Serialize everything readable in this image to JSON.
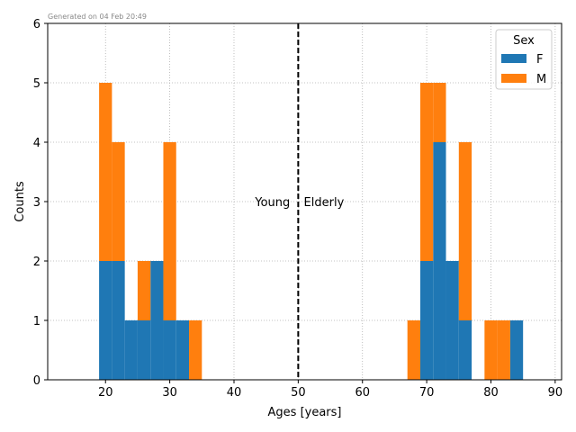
{
  "chart_data": {
    "type": "bar",
    "subtype": "stacked histogram",
    "generated_note": "Generated on 04 Feb 20:49",
    "xlabel": "Ages [years]",
    "ylabel": "Counts",
    "xlim": [
      11,
      91
    ],
    "ylim": [
      0,
      6
    ],
    "x_ticks": [
      20,
      30,
      40,
      50,
      60,
      70,
      80,
      90
    ],
    "y_ticks": [
      0,
      1,
      2,
      3,
      4,
      5,
      6
    ],
    "grid": true,
    "bin_width": 2,
    "legend": {
      "title": "Sex",
      "placement": "top-right"
    },
    "series": [
      {
        "name": "F",
        "color": "#1f77b4",
        "bins": [
          {
            "x0": 19,
            "x1": 21,
            "count": 2
          },
          {
            "x0": 21,
            "x1": 23,
            "count": 2
          },
          {
            "x0": 23,
            "x1": 25,
            "count": 1
          },
          {
            "x0": 25,
            "x1": 27,
            "count": 1
          },
          {
            "x0": 27,
            "x1": 29,
            "count": 2
          },
          {
            "x0": 29,
            "x1": 31,
            "count": 1
          },
          {
            "x0": 31,
            "x1": 33,
            "count": 1
          },
          {
            "x0": 69,
            "x1": 71,
            "count": 2
          },
          {
            "x0": 71,
            "x1": 73,
            "count": 4
          },
          {
            "x0": 73,
            "x1": 75,
            "count": 2
          },
          {
            "x0": 75,
            "x1": 77,
            "count": 1
          },
          {
            "x0": 83,
            "x1": 85,
            "count": 1
          }
        ]
      },
      {
        "name": "M",
        "color": "#ff7f0e",
        "bins": [
          {
            "x0": 19,
            "x1": 21,
            "count": 3
          },
          {
            "x0": 21,
            "x1": 23,
            "count": 2
          },
          {
            "x0": 25,
            "x1": 27,
            "count": 1
          },
          {
            "x0": 29,
            "x1": 31,
            "count": 3
          },
          {
            "x0": 33,
            "x1": 35,
            "count": 1
          },
          {
            "x0": 67,
            "x1": 69,
            "count": 1
          },
          {
            "x0": 69,
            "x1": 71,
            "count": 3
          },
          {
            "x0": 71,
            "x1": 73,
            "count": 1
          },
          {
            "x0": 75,
            "x1": 77,
            "count": 3
          },
          {
            "x0": 79,
            "x1": 81,
            "count": 1
          },
          {
            "x0": 81,
            "x1": 83,
            "count": 1
          }
        ]
      }
    ],
    "reference_line": {
      "x": 50,
      "style": "dashed",
      "color": "#000000"
    },
    "annotations": [
      {
        "text": "Young",
        "x": 46,
        "y": 3
      },
      {
        "text": "Elderly",
        "x": 54,
        "y": 3
      }
    ]
  }
}
